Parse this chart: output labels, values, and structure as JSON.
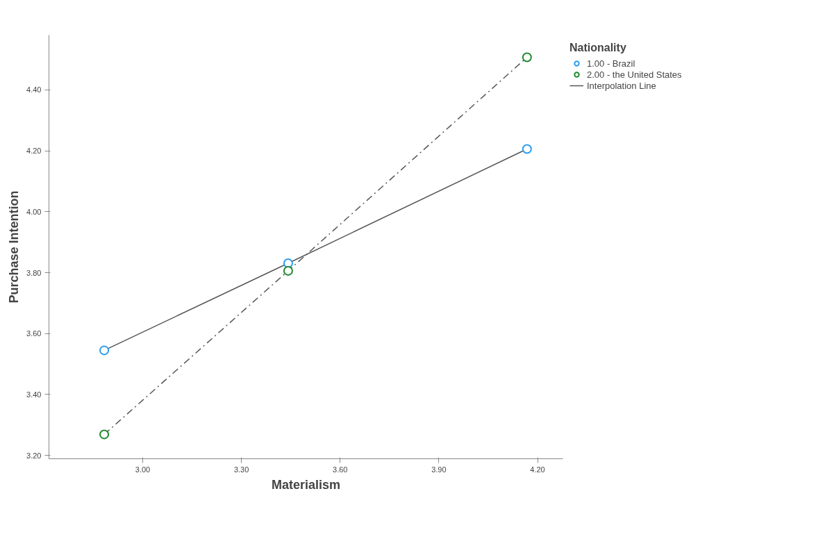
{
  "chart_data": {
    "type": "scatter",
    "xlabel": "Materialism",
    "ylabel": "Purchase Intention",
    "legend_title": "Nationality",
    "x": [
      2.883,
      3.442,
      4.168
    ],
    "series": [
      {
        "type": "line",
        "name": "Interpolation Line",
        "color": "#555555",
        "line_style": "solid",
        "marker": "none",
        "values": [
          3.545,
          3.831,
          4.206
        ]
      },
      {
        "type": "line",
        "color": "#555555",
        "line_style": "dashed",
        "marker": "none",
        "values": [
          3.269,
          3.806,
          4.507
        ]
      },
      {
        "name": "1.00 - Brazil",
        "color": "#2a9df4",
        "marker": "circle",
        "values": [
          3.545,
          3.831,
          4.206
        ]
      },
      {
        "name": "2.00 - the United States",
        "color": "#1e8a2e",
        "marker": "circle",
        "values": [
          3.269,
          3.806,
          4.507
        ]
      }
    ],
    "xlim": [
      2.715,
      4.277
    ],
    "ylim": [
      3.189,
      4.58
    ],
    "xticks": [
      {
        "value": 3.0,
        "label": "3.00"
      },
      {
        "value": 3.3,
        "label": "3.30"
      },
      {
        "value": 3.6,
        "label": "3.60"
      },
      {
        "value": 3.9,
        "label": "3.90"
      },
      {
        "value": 4.2,
        "label": "4.20"
      }
    ],
    "yticks": [
      {
        "value": 3.2,
        "label": "3.20"
      },
      {
        "value": 3.4,
        "label": "3.40"
      },
      {
        "value": 3.6,
        "label": "3.60"
      },
      {
        "value": 3.8,
        "label": "3.80"
      },
      {
        "value": 4.0,
        "label": "4.00"
      },
      {
        "value": 4.2,
        "label": "4.20"
      },
      {
        "value": 4.4,
        "label": "4.40"
      }
    ],
    "grid": false,
    "legend": "top right"
  }
}
